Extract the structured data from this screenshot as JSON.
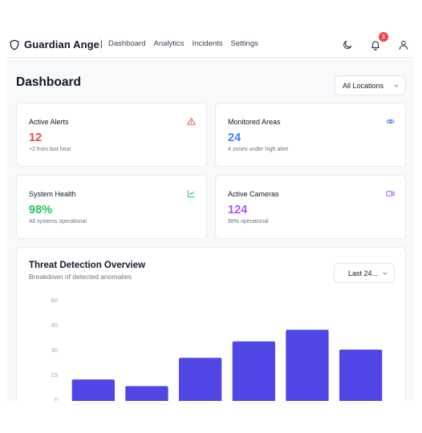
{
  "header": {
    "brand": "Guardian Angel",
    "nav": [
      "Dashboard",
      "Analytics",
      "Incidents",
      "Settings"
    ],
    "notification_count": "3",
    "icons": [
      "shield-icon",
      "moon-icon",
      "bell-icon",
      "user-icon"
    ]
  },
  "page": {
    "title": "Dashboard",
    "location_filter": "All Locations"
  },
  "cards": [
    {
      "label": "Active Alerts",
      "value": "12",
      "sub": "+2 from last hour",
      "icon": "alert-triangle-icon",
      "color": "#ef4444"
    },
    {
      "label": "Monitored Areas",
      "value": "24",
      "sub": "4 zones under high alert",
      "icon": "eye-icon",
      "color": "#3b82f6"
    },
    {
      "label": "System Health",
      "value": "98%",
      "sub": "All systems operational",
      "icon": "activity-chart-icon",
      "color": "#22c55e"
    },
    {
      "label": "Active Cameras",
      "value": "124",
      "sub": "98% operational",
      "icon": "video-camera-icon",
      "color": "#a855f7"
    }
  ],
  "chart_section": {
    "title": "Threat Detection Overview",
    "subtitle": "Breakdown of detected anomalies",
    "range_filter": "Last 24..."
  },
  "chart_data": {
    "type": "bar",
    "values": [
      12,
      8,
      25,
      35,
      42,
      30
    ],
    "yticks": [
      0,
      15,
      30,
      45,
      60
    ],
    "ylim": [
      0,
      60
    ],
    "bar_color": "#4f46e5"
  }
}
